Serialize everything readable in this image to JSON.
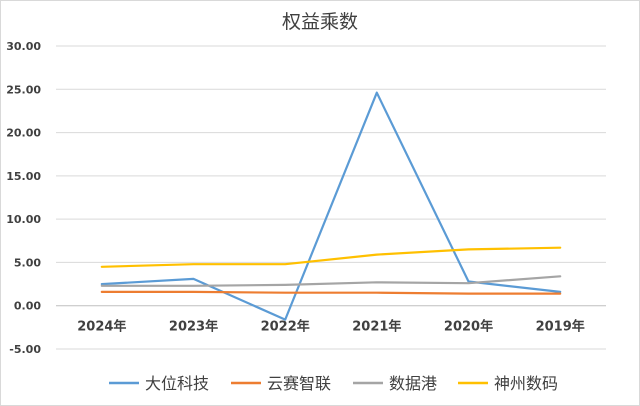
{
  "chart_data": {
    "type": "line",
    "title": "权益乘数",
    "xlabel": "",
    "ylabel": "",
    "categories": [
      "2024年",
      "2023年",
      "2022年",
      "2021年",
      "2020年",
      "2019年"
    ],
    "ylim": [
      -5,
      30
    ],
    "yticks": [
      -5,
      0,
      5,
      10,
      15,
      20,
      25,
      30
    ],
    "ytick_labels": [
      "-5.00",
      "0.00",
      "5.00",
      "10.00",
      "15.00",
      "20.00",
      "25.00",
      "30.00"
    ],
    "grid": true,
    "legend_position": "bottom",
    "series": [
      {
        "name": "大位科技",
        "color": "#5b9bd5",
        "values": [
          2.5,
          3.1,
          -1.6,
          24.6,
          2.8,
          1.6
        ]
      },
      {
        "name": "云赛智联",
        "color": "#ed7d31",
        "values": [
          1.6,
          1.6,
          1.5,
          1.5,
          1.4,
          1.4
        ]
      },
      {
        "name": "数据港",
        "color": "#a5a5a5",
        "values": [
          2.3,
          2.3,
          2.4,
          2.7,
          2.6,
          3.4
        ]
      },
      {
        "name": "神州数码",
        "color": "#ffc000",
        "values": [
          4.5,
          4.8,
          4.8,
          5.9,
          6.5,
          6.7
        ]
      }
    ]
  }
}
